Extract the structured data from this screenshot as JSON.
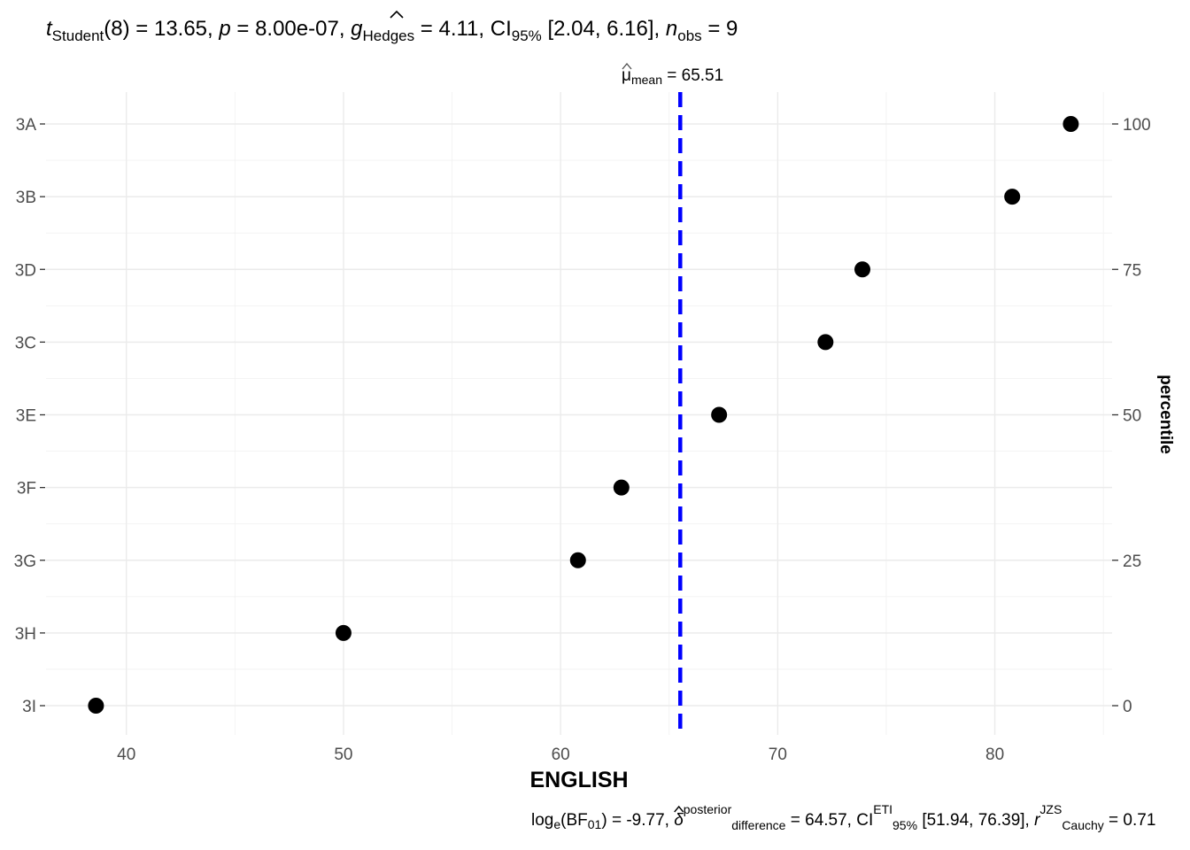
{
  "chart_data": {
    "type": "scatter",
    "title": "t_Student(8) = 13.65, p = 8.00e-07, g_Hedges = 4.11, CI95% [2.04, 6.16], n_obs = 9",
    "title_parts": {
      "t": "t",
      "t_sub": "Student",
      "t_val": "(8) = 13.65, ",
      "p": "p",
      "p_val": " = 8.00e-07, ",
      "g": "g",
      "g_sub": "Hedges",
      "g_val": " = 4.11, CI",
      "ci_sub": "95%",
      "ci_val": " [2.04, 6.16], ",
      "n": "n",
      "n_sub": "obs",
      "n_val": " = 9"
    },
    "subtitle": "log_e(BF01) = -9.77, δ posterior difference = 64.57, CI ETI 95% [51.94, 76.39], r JZS Cauchy = 0.71",
    "subtitle_parts": {
      "log": "log",
      "log_sub": "e",
      "bf": "(BF",
      "bf_sub": "01",
      "bf_val": ") = -9.77, ",
      "delta": "δ",
      "delta_sup": "posterior",
      "delta_sub": "difference",
      "delta_val": " = 64.57, CI",
      "ci_sup": "ETI",
      "ci_sub": "95%",
      "ci_val": " [51.94, 76.39], ",
      "r": "r",
      "r_sup": "JZS",
      "r_sub": "Cauchy",
      "r_val": " = 0.71"
    },
    "xlabel": "ENGLISH",
    "ylabel_right": "percentile",
    "xlim": [
      36.3,
      85.4
    ],
    "x_ticks": [
      40,
      50,
      60,
      70,
      80
    ],
    "right_ticks": [
      0,
      25,
      50,
      75,
      100
    ],
    "categories": [
      "3A",
      "3B",
      "3D",
      "3C",
      "3E",
      "3F",
      "3G",
      "3H",
      "3I"
    ],
    "points": [
      {
        "label": "3A",
        "x": 83.5,
        "percentile": 100
      },
      {
        "label": "3B",
        "x": 80.8,
        "percentile": 87.5
      },
      {
        "label": "3D",
        "x": 73.9,
        "percentile": 75
      },
      {
        "label": "3C",
        "x": 72.2,
        "percentile": 62.5
      },
      {
        "label": "3E",
        "x": 67.3,
        "percentile": 50
      },
      {
        "label": "3F",
        "x": 62.8,
        "percentile": 37.5
      },
      {
        "label": "3G",
        "x": 60.8,
        "percentile": 25
      },
      {
        "label": "3H",
        "x": 50.0,
        "percentile": 12.5
      },
      {
        "label": "3I",
        "x": 38.6,
        "percentile": 0
      }
    ],
    "mean_line": {
      "value": 65.51,
      "label_symbol": "μ",
      "label_sub": "mean",
      "label_val": " = 65.51",
      "color": "#0000ff"
    },
    "grid": true,
    "point_color": "#000000"
  }
}
